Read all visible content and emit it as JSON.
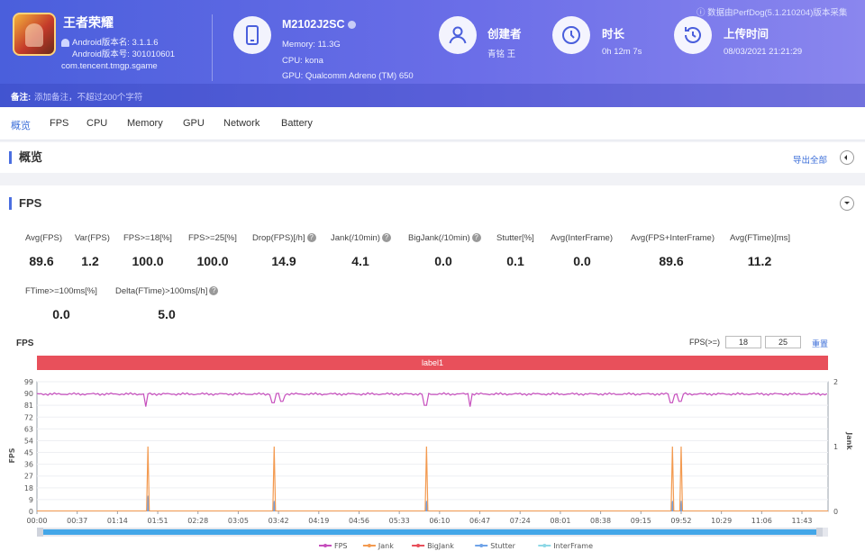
{
  "header": {
    "app_name": "王者荣耀",
    "android_version_name_label": "Android版本名: 3.1.1.6",
    "android_version_code_label": "Android版本号: 301010601",
    "package": "com.tencent.tmgp.sgame",
    "device": {
      "model": "M2102J2SC",
      "memory": "Memory: 11.3G",
      "cpu": "CPU: kona",
      "gpu": "GPU: Qualcomm Adreno (TM) 650"
    },
    "creator": {
      "title": "创建者",
      "value": "青铭 王"
    },
    "duration": {
      "title": "时长",
      "value": "0h 12m 7s"
    },
    "upload": {
      "title": "上传时间",
      "value": "08/03/2021 21:21:29"
    },
    "source_note": "数据由PerfDog(5.1.210204)版本采集",
    "note_label": "备注:",
    "note_placeholder": "添加备注，不超过200个字符"
  },
  "tabs": [
    {
      "label": "概览",
      "active": true
    },
    {
      "label": "FPS",
      "active": false
    },
    {
      "label": "CPU",
      "active": false
    },
    {
      "label": "Memory",
      "active": false
    },
    {
      "label": "GPU",
      "active": false
    },
    {
      "label": "Network",
      "active": false
    },
    {
      "label": "Battery",
      "active": false
    }
  ],
  "overview": {
    "title": "概览",
    "export_label": "导出全部"
  },
  "fps_section": {
    "title": "FPS",
    "metrics_row1": [
      {
        "label": "Avg(FPS)",
        "value": "89.6",
        "help": false
      },
      {
        "label": "Var(FPS)",
        "value": "1.2",
        "help": false
      },
      {
        "label": "FPS>=18[%]",
        "value": "100.0",
        "help": false
      },
      {
        "label": "FPS>=25[%]",
        "value": "100.0",
        "help": false
      },
      {
        "label": "Drop(FPS)[/h]",
        "value": "14.9",
        "help": true
      },
      {
        "label": "Jank(/10min)",
        "value": "4.1",
        "help": true
      },
      {
        "label": "BigJank(/10min)",
        "value": "0.0",
        "help": true
      },
      {
        "label": "Stutter[%]",
        "value": "0.1",
        "help": false
      },
      {
        "label": "Avg(InterFrame)",
        "value": "0.0",
        "help": false
      },
      {
        "label": "Avg(FPS+InterFrame)",
        "value": "89.6",
        "help": false
      },
      {
        "label": "Avg(FTime)[ms]",
        "value": "11.2",
        "help": false
      }
    ],
    "metrics_row2": [
      {
        "label": "FTime>=100ms[%]",
        "value": "0.0",
        "help": false
      },
      {
        "label": "Delta(FTime)>100ms[/h]",
        "value": "5.0",
        "help": true
      }
    ]
  },
  "chart_controls": {
    "chart_title": "FPS",
    "threshold_label": "FPS(>=)",
    "threshold_1": "18",
    "threshold_2": "25",
    "reset_label": "重置",
    "band_label": "label1"
  },
  "chart_data": {
    "type": "line",
    "ylabel": "FPS",
    "y2label": "Jank",
    "yticks": [
      "0",
      "9",
      "18",
      "27",
      "36",
      "45",
      "54",
      "63",
      "72",
      "81",
      "90",
      "99"
    ],
    "ylim": [
      0,
      99
    ],
    "y2ticks": [
      "0",
      "1",
      "2"
    ],
    "y2lim": [
      0,
      2
    ],
    "xticks": [
      "00:00",
      "00:37",
      "01:14",
      "01:51",
      "02:28",
      "03:05",
      "03:42",
      "04:19",
      "04:56",
      "05:33",
      "06:10",
      "06:47",
      "07:24",
      "08:01",
      "08:38",
      "09:15",
      "09:52",
      "10:29",
      "11:06",
      "11:43"
    ],
    "xlim_seconds": [
      0,
      727
    ],
    "fps_baseline": 89.6,
    "fps_dips": [
      {
        "t": 100,
        "fps": 80
      },
      {
        "t": 217,
        "fps": 83
      },
      {
        "t": 225,
        "fps": 84
      },
      {
        "t": 357,
        "fps": 81
      },
      {
        "t": 398,
        "fps": 80
      },
      {
        "t": 583,
        "fps": 83
      },
      {
        "t": 591,
        "fps": 84
      }
    ],
    "jank_spikes": [
      {
        "t": 102,
        "jank": 1
      },
      {
        "t": 218,
        "jank": 1
      },
      {
        "t": 358,
        "jank": 1
      },
      {
        "t": 584,
        "jank": 1
      },
      {
        "t": 592,
        "jank": 1
      }
    ],
    "stutter_spikes": [
      {
        "t": 102,
        "value": 12
      },
      {
        "t": 218,
        "value": 8
      },
      {
        "t": 358,
        "value": 8
      },
      {
        "t": 584,
        "value": 8
      },
      {
        "t": 592,
        "value": 8
      }
    ],
    "legend": [
      {
        "name": "FPS",
        "color": "#c64fbd"
      },
      {
        "name": "Jank",
        "color": "#f39a50"
      },
      {
        "name": "BigJank",
        "color": "#e8505b"
      },
      {
        "name": "Stutter",
        "color": "#6fa3e8"
      },
      {
        "name": "InterFrame",
        "color": "#8ed8e6"
      }
    ]
  },
  "colors": {
    "accent": "#4a6ee0",
    "header_start": "#4a5fdc",
    "header_end": "#8a86ee"
  }
}
